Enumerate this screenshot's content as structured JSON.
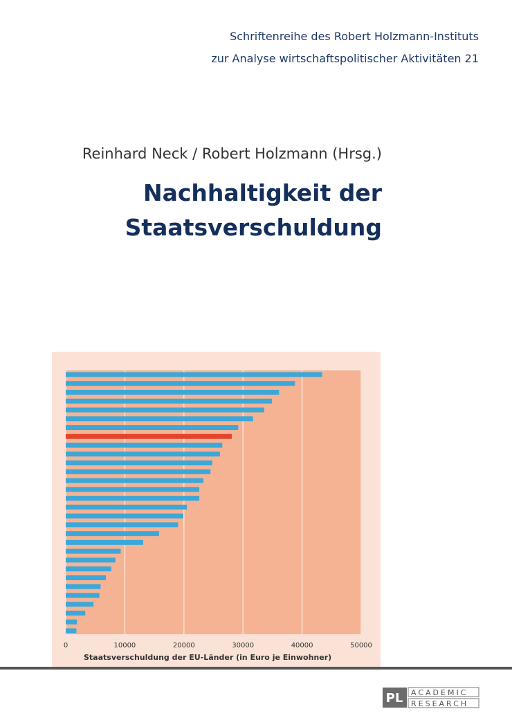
{
  "series_title": [
    "Schriftenreihe des Robert Holzmann-Instituts",
    "zur Analyse wirtschaftspolitischer Aktivitäten 21"
  ],
  "authors": "Reinhard Neck / Robert Holzmann (Hrsg.)",
  "title": [
    "Nachhaltigkeit der",
    "Staatsverschuldung"
  ],
  "chart_data": {
    "type": "bar",
    "orientation": "horizontal",
    "values": [
      43400,
      38800,
      36100,
      34900,
      33600,
      31700,
      29200,
      28100,
      26500,
      26100,
      24800,
      24500,
      23300,
      22600,
      22600,
      20500,
      19900,
      19000,
      15800,
      13100,
      9300,
      8400,
      7700,
      6800,
      5900,
      5700,
      4700,
      3300,
      1900,
      1800
    ],
    "colors": [
      "#3ca7d9",
      "#3ca7d9",
      "#3ca7d9",
      "#3ca7d9",
      "#3ca7d9",
      "#3ca7d9",
      "#3ca7d9",
      "#e2452c",
      "#3ca7d9",
      "#3ca7d9",
      "#3ca7d9",
      "#3ca7d9",
      "#3ca7d9",
      "#3ca7d9",
      "#3ca7d9",
      "#3ca7d9",
      "#3ca7d9",
      "#3ca7d9",
      "#3ca7d9",
      "#3ca7d9",
      "#3ca7d9",
      "#3ca7d9",
      "#3ca7d9",
      "#3ca7d9",
      "#3ca7d9",
      "#3ca7d9",
      "#3ca7d9",
      "#3ca7d9",
      "#3ca7d9",
      "#3ca7d9"
    ],
    "xlim": [
      0,
      50000
    ],
    "xticks": [
      0,
      10000,
      20000,
      30000,
      40000,
      50000
    ],
    "x_label": "Staatsverschuldung der EU-Länder (in Euro je Einwohner)",
    "grid": true
  },
  "publisher": {
    "logo": "PL",
    "lines": [
      "ACADEMIC",
      "RESEARCH"
    ]
  }
}
